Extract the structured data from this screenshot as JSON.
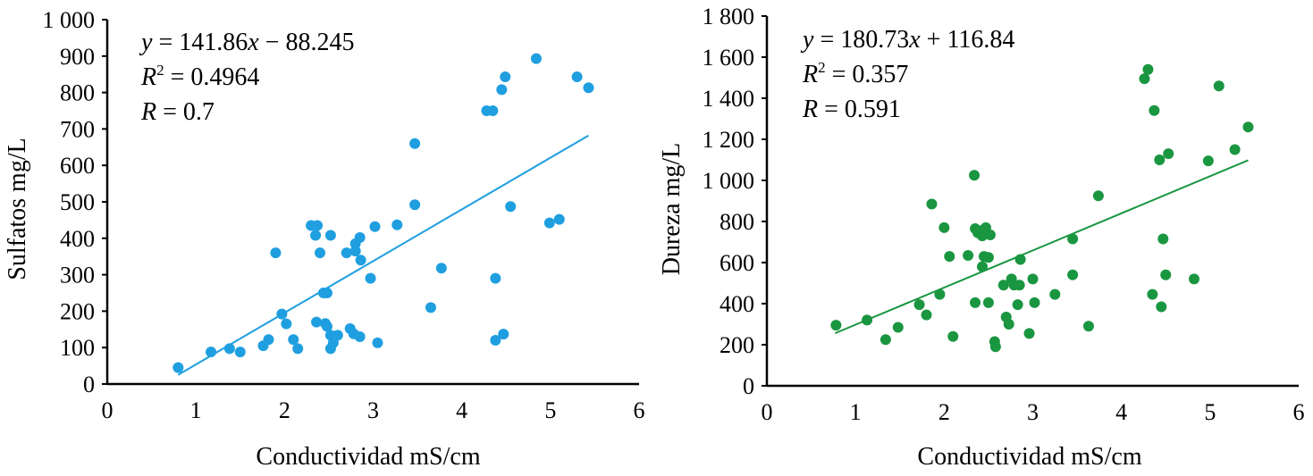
{
  "chart_data": [
    {
      "type": "scatter",
      "color": "#1f9fe0",
      "xlabel": "Conductividad mS/cm",
      "ylabel": "Sulfatos mg/L",
      "xlim": [
        0,
        6
      ],
      "ylim": [
        0,
        1000
      ],
      "xticks": [
        0,
        1,
        2,
        3,
        4,
        5,
        6
      ],
      "yticks": [
        0,
        100,
        200,
        300,
        400,
        500,
        600,
        700,
        800,
        900,
        1000
      ],
      "xtick_labels": [
        "0",
        "1",
        "2",
        "3",
        "4",
        "5",
        "6"
      ],
      "ytick_labels": [
        "0",
        "100",
        "200",
        "300",
        "400",
        "500",
        "600",
        "700",
        "800",
        "900",
        "1 000"
      ],
      "equation": {
        "y": "y",
        "eq1": " = 141.86",
        "x": "x",
        "eq2": " − 88.245",
        "r2": "R",
        "r2sup": "2",
        "r2val": " = 0.4964",
        "r": "R",
        "rval": " = 0.7"
      },
      "trendline": {
        "slope": 141.86,
        "intercept": -88.245,
        "x_range": [
          0.8,
          5.43
        ]
      },
      "points": [
        [
          0.8,
          45
        ],
        [
          1.17,
          88
        ],
        [
          1.38,
          97
        ],
        [
          1.5,
          88
        ],
        [
          1.76,
          105
        ],
        [
          1.82,
          122
        ],
        [
          1.9,
          360
        ],
        [
          1.97,
          192
        ],
        [
          2.02,
          165
        ],
        [
          2.1,
          122
        ],
        [
          2.15,
          97
        ],
        [
          2.3,
          435
        ],
        [
          2.35,
          408
        ],
        [
          2.37,
          435
        ],
        [
          2.36,
          170
        ],
        [
          2.4,
          360
        ],
        [
          2.44,
          250
        ],
        [
          2.48,
          250
        ],
        [
          2.46,
          166
        ],
        [
          2.48,
          158
        ],
        [
          2.52,
          408
        ],
        [
          2.52,
          134
        ],
        [
          2.52,
          97
        ],
        [
          2.55,
          113
        ],
        [
          2.6,
          134
        ],
        [
          2.7,
          360
        ],
        [
          2.74,
          152
        ],
        [
          2.78,
          138
        ],
        [
          2.8,
          385
        ],
        [
          2.8,
          365
        ],
        [
          2.85,
          402
        ],
        [
          2.86,
          340
        ],
        [
          2.85,
          130
        ],
        [
          2.97,
          290
        ],
        [
          3.02,
          432
        ],
        [
          3.05,
          113
        ],
        [
          3.27,
          437
        ],
        [
          3.47,
          660
        ],
        [
          3.47,
          492
        ],
        [
          3.65,
          210
        ],
        [
          3.77,
          318
        ],
        [
          4.28,
          750
        ],
        [
          4.35,
          750
        ],
        [
          4.38,
          290
        ],
        [
          4.38,
          120
        ],
        [
          4.45,
          808
        ],
        [
          4.47,
          137
        ],
        [
          4.49,
          843
        ],
        [
          4.55,
          487
        ],
        [
          4.84,
          893
        ],
        [
          4.99,
          442
        ],
        [
          5.1,
          452
        ],
        [
          5.3,
          843
        ],
        [
          5.43,
          813
        ]
      ]
    },
    {
      "type": "scatter",
      "color": "#1a9641",
      "xlabel": "Conductividad mS/cm",
      "ylabel": "Dureza mg/L",
      "xlim": [
        0,
        6
      ],
      "ylim": [
        0,
        1800
      ],
      "xticks": [
        0,
        1,
        2,
        3,
        4,
        5,
        6
      ],
      "yticks": [
        0,
        200,
        400,
        600,
        800,
        1000,
        1200,
        1400,
        1600,
        1800
      ],
      "xtick_labels": [
        "0",
        "1",
        "2",
        "3",
        "4",
        "5",
        "6"
      ],
      "ytick_labels": [
        "0",
        "200",
        "400",
        "600",
        "800",
        "1 000",
        "1 200",
        "1 400",
        "1 600",
        "1 800"
      ],
      "equation": {
        "y": "y",
        "eq1": " = 180.73",
        "x": "x",
        "eq2": " + 116.84",
        "r2": "R",
        "r2sup": "2",
        "r2val": " = 0.357",
        "r": "R",
        "rval": " = 0.591"
      },
      "trendline": {
        "slope": 180.73,
        "intercept": 116.84,
        "x_range": [
          0.77,
          5.43
        ]
      },
      "points": [
        [
          0.78,
          295
        ],
        [
          1.13,
          320
        ],
        [
          1.34,
          225
        ],
        [
          1.48,
          285
        ],
        [
          1.72,
          395
        ],
        [
          1.8,
          345
        ],
        [
          1.86,
          885
        ],
        [
          1.95,
          445
        ],
        [
          2.0,
          770
        ],
        [
          2.06,
          630
        ],
        [
          2.1,
          240
        ],
        [
          2.27,
          635
        ],
        [
          2.34,
          1025
        ],
        [
          2.35,
          765
        ],
        [
          2.35,
          405
        ],
        [
          2.38,
          745
        ],
        [
          2.4,
          755
        ],
        [
          2.43,
          730
        ],
        [
          2.43,
          580
        ],
        [
          2.45,
          630
        ],
        [
          2.47,
          770
        ],
        [
          2.5,
          405
        ],
        [
          2.5,
          625
        ],
        [
          2.52,
          735
        ],
        [
          2.57,
          215
        ],
        [
          2.58,
          190
        ],
        [
          2.67,
          490
        ],
        [
          2.7,
          335
        ],
        [
          2.73,
          300
        ],
        [
          2.76,
          520
        ],
        [
          2.79,
          490
        ],
        [
          2.83,
          395
        ],
        [
          2.85,
          490
        ],
        [
          2.86,
          615
        ],
        [
          2.96,
          255
        ],
        [
          3.0,
          520
        ],
        [
          3.02,
          405
        ],
        [
          3.25,
          445
        ],
        [
          3.45,
          715
        ],
        [
          3.45,
          540
        ],
        [
          3.63,
          290
        ],
        [
          3.74,
          925
        ],
        [
          4.26,
          1495
        ],
        [
          4.3,
          1540
        ],
        [
          4.35,
          445
        ],
        [
          4.37,
          1340
        ],
        [
          4.43,
          1100
        ],
        [
          4.45,
          385
        ],
        [
          4.47,
          715
        ],
        [
          4.5,
          540
        ],
        [
          4.53,
          1130
        ],
        [
          4.82,
          520
        ],
        [
          4.98,
          1095
        ],
        [
          5.1,
          1460
        ],
        [
          5.28,
          1150
        ],
        [
          5.43,
          1260
        ]
      ]
    }
  ]
}
